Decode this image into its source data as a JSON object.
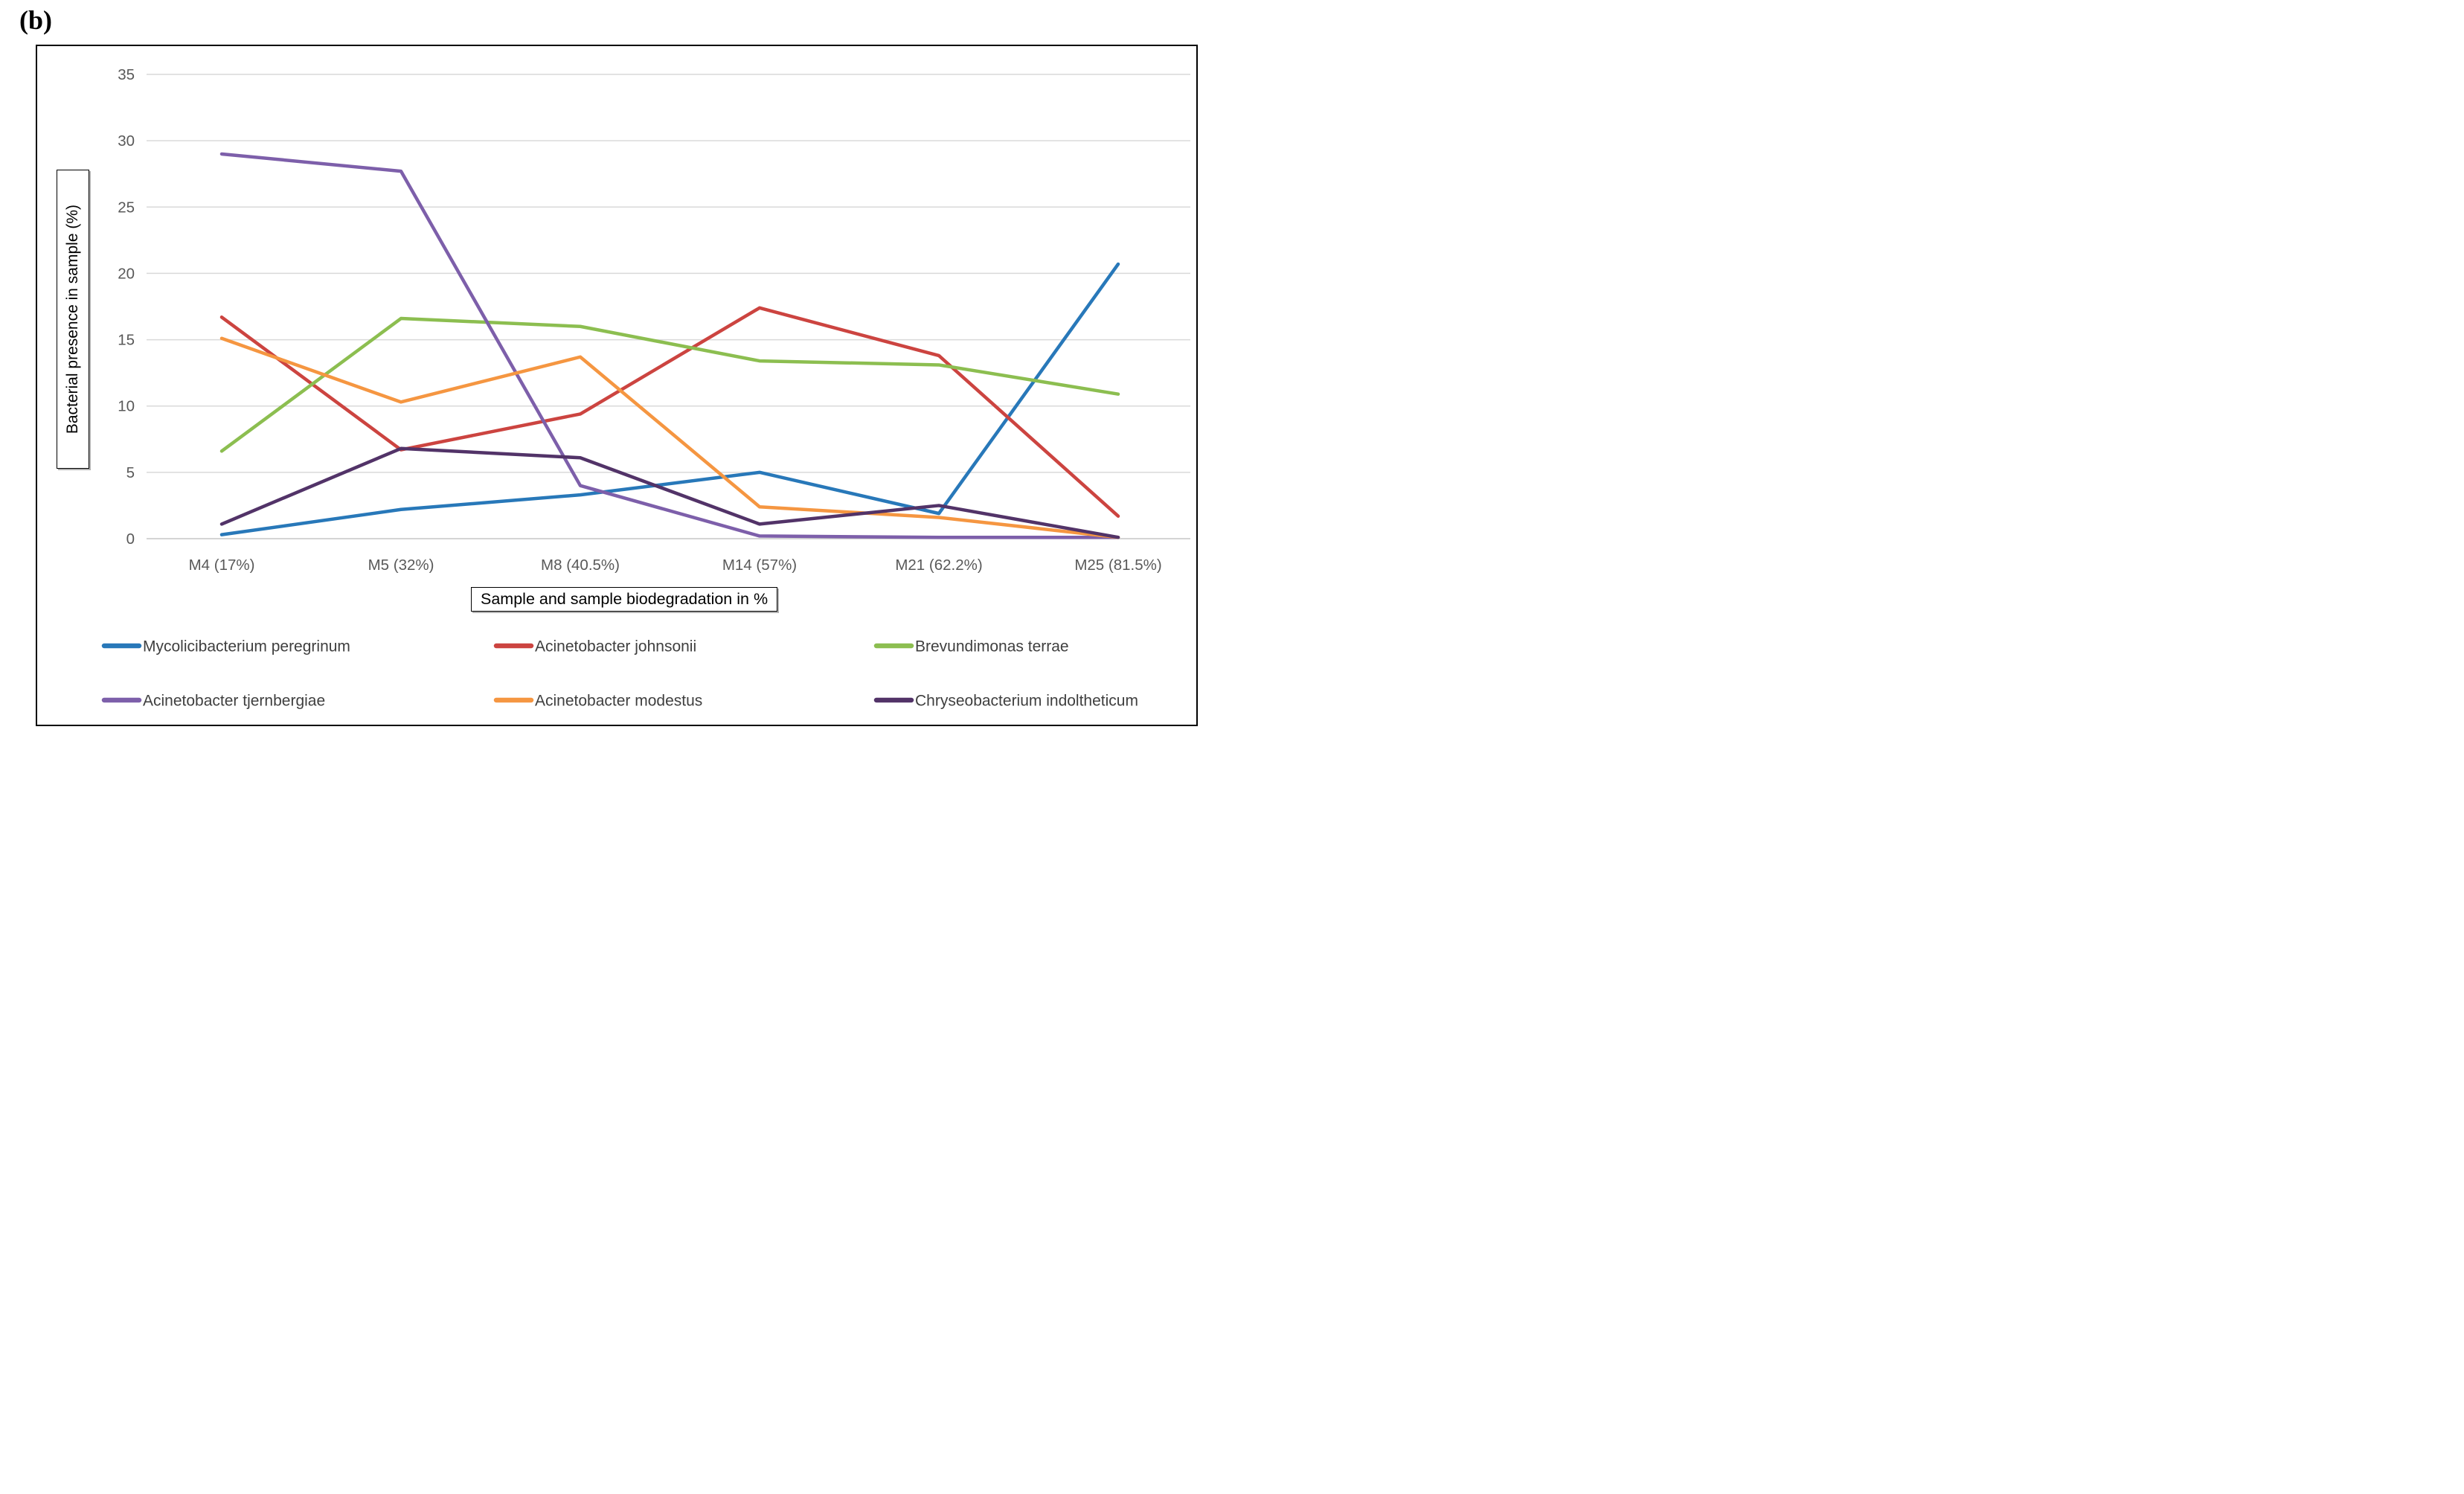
{
  "figure_label": "(b)",
  "chart_data": {
    "type": "line",
    "title": "",
    "xlabel": "Sample and sample biodegradation in %",
    "ylabel": "Bacterial presence in sample (%)",
    "ylim": [
      0,
      35
    ],
    "yticks": [
      0,
      5,
      10,
      15,
      20,
      25,
      30,
      35
    ],
    "grid": true,
    "legend_position": "bottom",
    "axis_text_color": "#595959",
    "gridline_color": "#d9d9d9",
    "zero_axis_color": "#c6c6c6",
    "categories": [
      "M4 (17%)",
      "M5 (32%)",
      "M8 (40.5%)",
      "M14 (57%)",
      "M21 (62.2%)",
      "M25 (81.5%)"
    ],
    "series": [
      {
        "name": "Mycolicibacterium peregrinum",
        "color": "#2878B9",
        "values": [
          0.3,
          2.2,
          3.3,
          5.0,
          1.9,
          20.7
        ]
      },
      {
        "name": "Acinetobacter johnsonii",
        "color": "#CC4440",
        "values": [
          16.7,
          6.7,
          9.4,
          17.4,
          13.8,
          1.7
        ]
      },
      {
        "name": "Brevundimonas terrae",
        "color": "#8CBE50",
        "values": [
          6.6,
          16.6,
          16.0,
          13.4,
          13.1,
          10.9
        ]
      },
      {
        "name": "Acinetobacter tjernbergiae",
        "color": "#7D5FAA",
        "values": [
          29.0,
          27.7,
          4.0,
          0.2,
          0.1,
          0.1
        ]
      },
      {
        "name": "Acinetobacter modestus",
        "color": "#F59641",
        "values": [
          15.1,
          10.3,
          13.7,
          2.4,
          1.6,
          0.1
        ]
      },
      {
        "name": "Chryseobacterium indoltheticum",
        "color": "#523368",
        "values": [
          1.1,
          6.8,
          6.1,
          1.1,
          2.5,
          0.1
        ]
      }
    ]
  }
}
